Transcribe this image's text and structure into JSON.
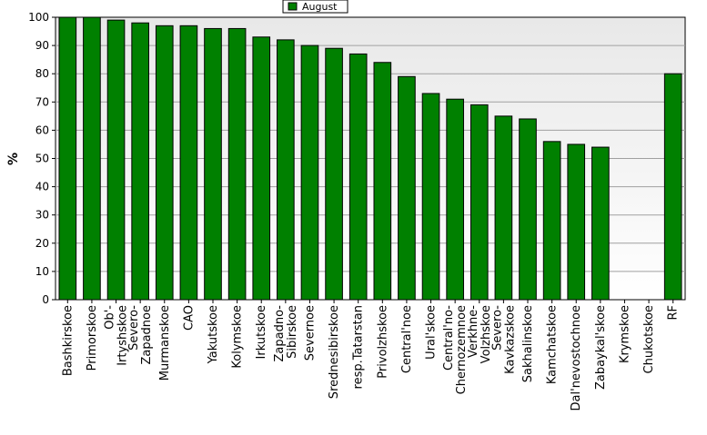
{
  "chart_data": {
    "type": "bar",
    "ylabel": "%",
    "ylim": [
      0,
      100
    ],
    "yticks": [
      0,
      10,
      20,
      30,
      40,
      50,
      60,
      70,
      80,
      90,
      100
    ],
    "grid": true,
    "legend_position": "top-center",
    "categories": [
      "Bashkirskoe",
      "Primorskoe",
      "Ob'-Irtyshskoe",
      "Severo-Zapadnoe",
      "Murmanskoe",
      "CAO",
      "Yakutskoe",
      "Kolymskoe",
      "Irkutskoe",
      "Zapadno-Sibirskoe",
      "Severnoe",
      "Srednesibirskoe",
      "resp.Tatarstan",
      "Privolzhskoe",
      "Central'noe",
      "Ural'skoe",
      "Central'no-Chernozemnoe",
      "Verkhne-Volzhskoe",
      "Severo-Kavkazskoe",
      "Sakhalinskoe",
      "Kamchatskoe",
      "Dal'nevostochnoe",
      "Zabaykal'skoe",
      "Krymskoe",
      "Chukotskoe",
      "RF"
    ],
    "label_lines": [
      [
        "Bashkirskoe"
      ],
      [
        "Primorskoe"
      ],
      [
        "Ob'-",
        "Irtyshskoe"
      ],
      [
        "Severo-",
        "Zapadnoe"
      ],
      [
        "Murmanskoe"
      ],
      [
        "CAO"
      ],
      [
        "Yakutskoe"
      ],
      [
        "Kolymskoe"
      ],
      [
        "Irkutskoe"
      ],
      [
        "Zapadno-",
        "Sibirskoe"
      ],
      [
        "Severnoe"
      ],
      [
        "Srednesibirskoe"
      ],
      [
        "resp.Tatarstan"
      ],
      [
        "Privolzhskoe"
      ],
      [
        "Central'noe"
      ],
      [
        "Ural'skoe"
      ],
      [
        "Central'no-",
        "Chernozemnoe"
      ],
      [
        "Verkhne-",
        "Volzhskoe"
      ],
      [
        "Severo-",
        "Kavkazskoe"
      ],
      [
        "Sakhalinskoe"
      ],
      [
        "Kamchatskoe"
      ],
      [
        "Dal'nevostochnoe"
      ],
      [
        "Zabaykal'skoe"
      ],
      [
        "Krymskoe"
      ],
      [
        "Chukotskoe"
      ],
      [
        "RF"
      ]
    ],
    "series": [
      {
        "name": "August",
        "color": "#008000",
        "values": [
          100,
          100,
          99,
          98,
          97,
          97,
          96,
          96,
          93,
          92,
          90,
          89,
          87,
          84,
          79,
          73,
          71,
          69,
          65,
          64,
          56,
          55,
          54,
          0,
          0,
          80
        ]
      }
    ]
  }
}
